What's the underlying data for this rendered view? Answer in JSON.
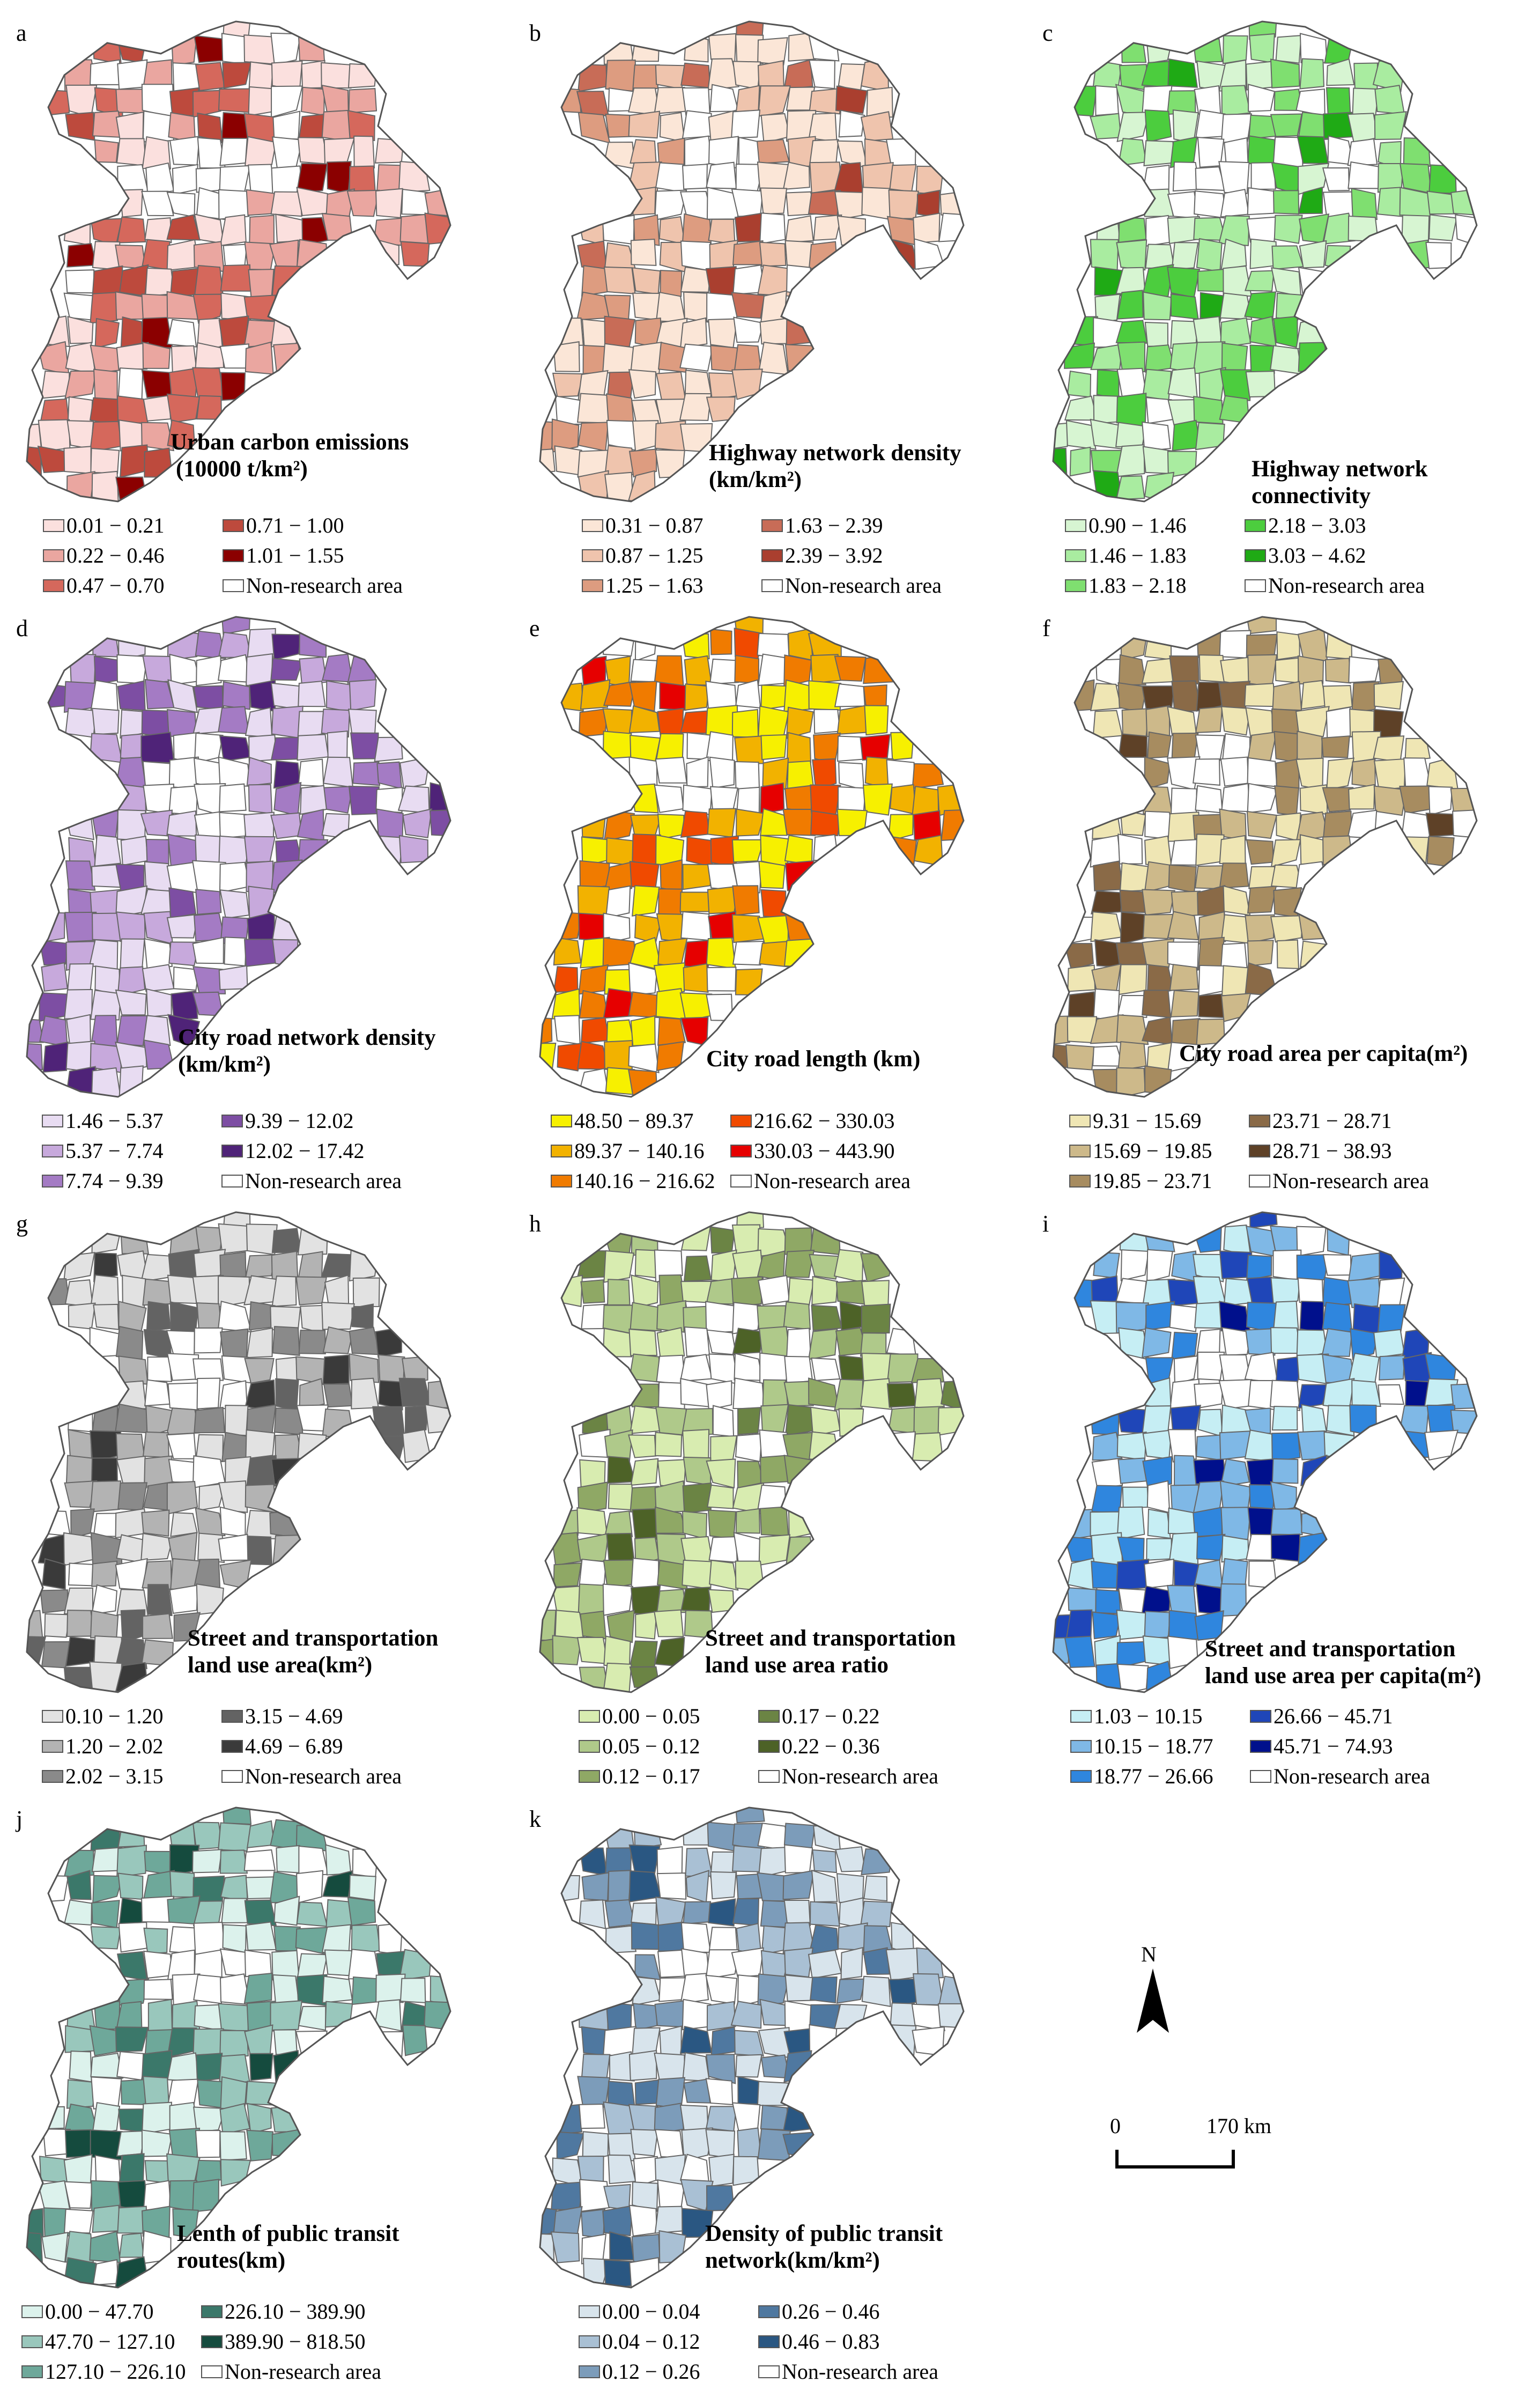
{
  "panels": [
    {
      "letter": "a",
      "title_line1": "Urban carbon emissions",
      "title_line2": "(10000 t/km²)",
      "colors": [
        "#fbe0de",
        "#eaa6a0",
        "#d5685c",
        "#bd4a3d",
        "#8b0000"
      ],
      "legend": [
        "0.01 − 0.21",
        "0.22 − 0.46",
        "0.47 − 0.70",
        "0.71 − 1.00",
        "1.01 − 1.55",
        "Non-research area"
      ]
    },
    {
      "letter": "b",
      "title_line1": "Highway network density",
      "title_line2": "(km/km²)",
      "colors": [
        "#fbe6d7",
        "#efc4ad",
        "#dd9c80",
        "#c86c57",
        "#aa3f2f"
      ],
      "legend": [
        "0.31 − 0.87",
        "0.87 − 1.25",
        "1.25 − 1.63",
        "1.63 − 2.39",
        "2.39 − 3.92",
        "Non-research area"
      ]
    },
    {
      "letter": "c",
      "title_line1": "Highway network connectivity",
      "title_line2": "",
      "colors": [
        "#d7f5d2",
        "#a9eca0",
        "#7fdf70",
        "#4ccd3e",
        "#1faa15"
      ],
      "legend": [
        "0.90 − 1.46",
        "1.46 − 1.83",
        "1.83 − 2.18",
        "2.18 − 3.03",
        "3.03 − 4.62",
        "Non-research area"
      ]
    },
    {
      "letter": "d",
      "title_line1": "City road network density",
      "title_line2": "(km/km²)",
      "colors": [
        "#e8dcf2",
        "#c7a9dc",
        "#a47bc4",
        "#7d4ea3",
        "#4f2378"
      ],
      "legend": [
        "1.46 − 5.37",
        "5.37 − 7.74",
        "7.74 − 9.39",
        "9.39 − 12.02",
        "12.02 − 17.42",
        "Non-research area"
      ]
    },
    {
      "letter": "e",
      "title_line1": "City road length (km)",
      "title_line2": "",
      "colors": [
        "#f7f000",
        "#f2b200",
        "#f07b00",
        "#f04a00",
        "#e60000"
      ],
      "legend": [
        "48.50 − 89.37",
        "89.37 − 140.16",
        "140.16 − 216.62",
        "216.62 − 330.03",
        "330.03 − 443.90",
        "Non-research area"
      ]
    },
    {
      "letter": "f",
      "title_line1": "City road area per capita(m²)",
      "title_line2": "",
      "colors": [
        "#efe6b4",
        "#cdb98a",
        "#a78c60",
        "#8a6a47",
        "#5e4127"
      ],
      "legend": [
        "9.31 − 15.69",
        "15.69 − 19.85",
        "19.85 − 23.71",
        "23.71 − 28.71",
        "28.71 − 38.93",
        "Non-research area"
      ]
    },
    {
      "letter": "g",
      "title_line1": "Street and transportation",
      "title_line2": "land use area(km²)",
      "colors": [
        "#e2e2e2",
        "#b3b3b3",
        "#8a8a8a",
        "#636363",
        "#3a3a3a"
      ],
      "legend": [
        "0.10 − 1.20",
        "1.20 − 2.02",
        "2.02 − 3.15",
        "3.15 − 4.69",
        "4.69 − 6.89",
        "Non-research area"
      ]
    },
    {
      "letter": "h",
      "title_line1": "Street and transportation",
      "title_line2": "land use area ratio",
      "colors": [
        "#d8ecb0",
        "#afc98a",
        "#8fa865",
        "#6b8444",
        "#4d6227"
      ],
      "legend": [
        "0.00 − 0.05",
        "0.05 − 0.12",
        "0.12 − 0.17",
        "0.17 − 0.22",
        "0.22 − 0.36",
        "Non-research area"
      ]
    },
    {
      "letter": "i",
      "title_line1": "Street and transportation",
      "title_line2": "land use area per capita(m²)",
      "colors": [
        "#c6eef4",
        "#7fb8e6",
        "#2f86de",
        "#1f46b8",
        "#00108c"
      ],
      "legend": [
        "1.03 − 10.15",
        "10.15 − 18.77",
        "18.77 − 26.66",
        "26.66 − 45.71",
        "45.71 − 74.93",
        "Non-research area"
      ]
    },
    {
      "letter": "j",
      "title_line1": "Lenth of public transit",
      "title_line2": "routes(km)",
      "colors": [
        "#dcf2ec",
        "#99c7bc",
        "#6ea89a",
        "#3b786a",
        "#154b3e"
      ],
      "legend": [
        "0.00 − 47.70",
        "47.70 − 127.10",
        "127.10 − 226.10",
        "226.10 − 389.90",
        "389.90 − 818.50",
        "Non-research area"
      ]
    },
    {
      "letter": "k",
      "title_line1": "Density of public transit",
      "title_line2": "network(km/km²)",
      "colors": [
        "#d8e4ec",
        "#a9c0d4",
        "#7c9cba",
        "#4f78a0",
        "#2a5782"
      ],
      "legend": [
        "0.00 − 0.04",
        "0.04 − 0.12",
        "0.12 − 0.26",
        "0.26 − 0.46",
        "0.46 − 0.83",
        "Non-research area"
      ]
    }
  ],
  "north_arrow": {
    "label": "N"
  },
  "scale_bar": {
    "start": "0",
    "distance": "170 km"
  }
}
